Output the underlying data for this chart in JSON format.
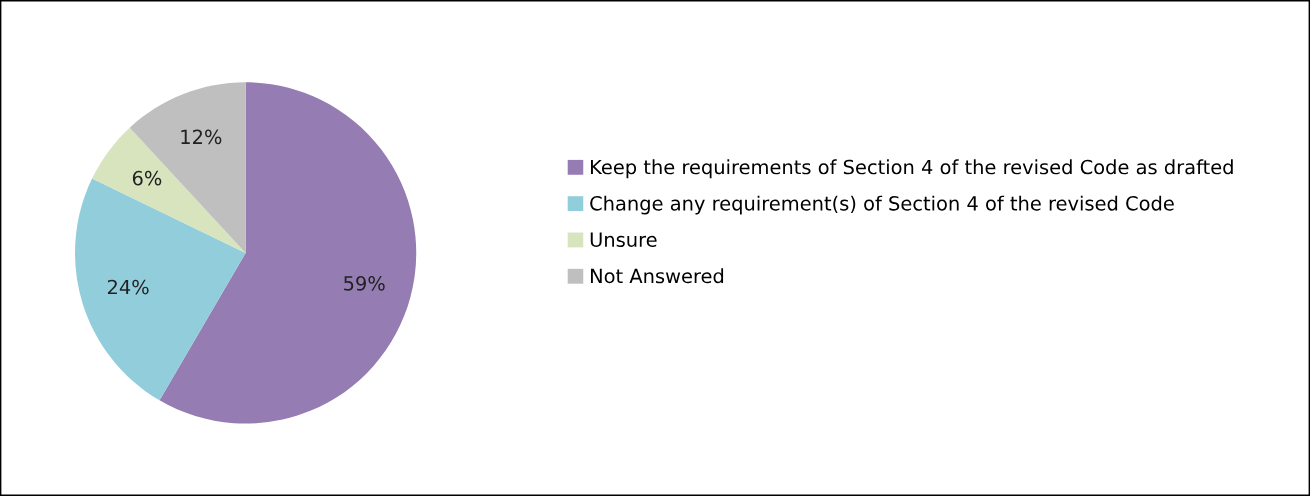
{
  "chart_data": {
    "type": "pie",
    "categories": [
      "Keep the requirements of Section 4 of the revised Code as drafted",
      "Change any requirement(s) of Section 4 of the revised Code",
      "Unsure",
      "Not Answered"
    ],
    "values": [
      59,
      24,
      6,
      12
    ],
    "colors": [
      "#957db3",
      "#92cddc",
      "#d7e4bd",
      "#bfbfbf"
    ],
    "value_labels": [
      "59%",
      "24%",
      "6%",
      "12%"
    ],
    "legend": "right"
  }
}
